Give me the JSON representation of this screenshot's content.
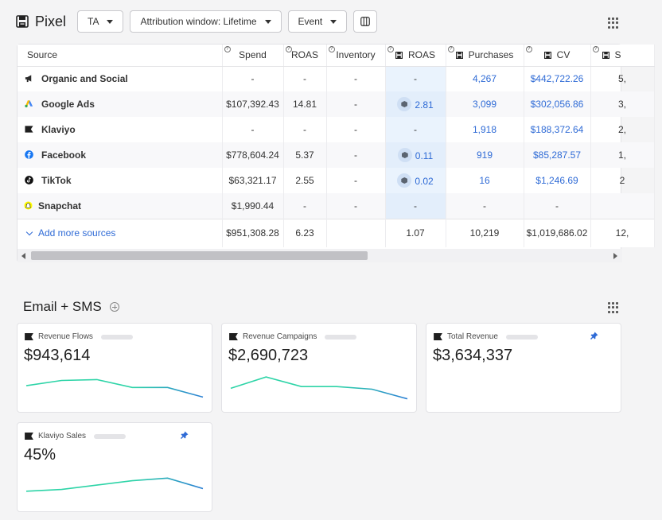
{
  "header": {
    "title": "Pixel",
    "model_select": "TA",
    "attribution_select": "Attribution window: Lifetime",
    "event_select": "Event"
  },
  "table": {
    "columns": [
      "Source",
      "Spend",
      "ROAS",
      "Inventory",
      "ROAS",
      "Purchases",
      "CV",
      "S"
    ],
    "rows": [
      {
        "source": "Organic and Social",
        "icon": "megaphone-icon",
        "spend": "-",
        "roas": "-",
        "inventory": "-",
        "roas2": "-",
        "purchases": "4,267",
        "cv": "$442,722.26",
        "s": "5,"
      },
      {
        "source": "Google Ads",
        "icon": "google-ads-icon",
        "spend": "$107,392.43",
        "roas": "14.81",
        "inventory": "-",
        "roas2": "2.81",
        "purchases": "3,099",
        "cv": "$302,056.86",
        "s": "3,"
      },
      {
        "source": "Klaviyo",
        "icon": "klaviyo-flag-icon",
        "spend": "-",
        "roas": "-",
        "inventory": "-",
        "roas2": "-",
        "purchases": "1,918",
        "cv": "$188,372.64",
        "s": "2,"
      },
      {
        "source": "Facebook",
        "icon": "facebook-icon",
        "spend": "$778,604.24",
        "roas": "5.37",
        "inventory": "-",
        "roas2": "0.11",
        "purchases": "919",
        "cv": "$85,287.57",
        "s": "1,"
      },
      {
        "source": "TikTok",
        "icon": "tiktok-icon",
        "spend": "$63,321.17",
        "roas": "2.55",
        "inventory": "-",
        "roas2": "0.02",
        "purchases": "16",
        "cv": "$1,246.69",
        "s": "2"
      },
      {
        "source": "Snapchat",
        "icon": "snapchat-icon",
        "spend": "$1,990.44",
        "roas": "-",
        "inventory": "-",
        "roas2": "-",
        "purchases": "-",
        "cv": "-",
        "s": ""
      }
    ],
    "footer": {
      "add_more": "Add more sources",
      "spend": "$951,308.28",
      "roas": "6.23",
      "inventory": "",
      "roas2": "1.07",
      "purchases": "10,219",
      "cv": "$1,019,686.02",
      "s": "12,"
    }
  },
  "email_section": {
    "title": "Email + SMS",
    "cards": [
      {
        "label": "Revenue Flows",
        "value": "$943,614",
        "spark": [
          0.45,
          0.75,
          0.8,
          0.35,
          0.35,
          -0.2
        ]
      },
      {
        "label": "Revenue Campaigns",
        "value": "$2,690,723",
        "spark": [
          0.3,
          0.95,
          0.4,
          0.4,
          0.25,
          -0.3
        ]
      },
      {
        "label": "Total Revenue",
        "value": "$3,634,337"
      },
      {
        "label": "Klaviyo Sales",
        "value": "45%",
        "spark": [
          0.1,
          0.2,
          0.45,
          0.7,
          0.85,
          0.25
        ]
      }
    ]
  },
  "colors": {
    "accent": "#2f6bd6",
    "spark_start": "#2dd4a7",
    "spark_end": "#2a7fd4"
  }
}
